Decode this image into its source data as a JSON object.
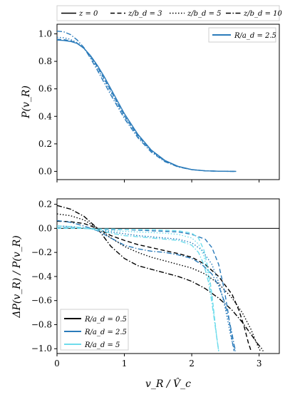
{
  "figure": {
    "top_legend": [
      {
        "label": "z = 0",
        "dash": "solid"
      },
      {
        "label": "z/b_d = 3",
        "dash": "dashed"
      },
      {
        "label": "z/b_d = 5",
        "dash": "dotted"
      },
      {
        "label": "z/b_d = 10",
        "dash": "dashdot"
      }
    ]
  },
  "chart_data": [
    {
      "type": "line",
      "panel": "top",
      "ylabel": "P(v_R)",
      "xlim": [
        0,
        3.3
      ],
      "ylim": [
        -0.06,
        1.07
      ],
      "x_ticks": [
        0,
        1,
        2,
        3
      ],
      "y_ticks": [
        "0.0",
        "0.2",
        "0.4",
        "0.6",
        "0.8",
        "1.0"
      ],
      "y_tick_values": [
        0.0,
        0.2,
        0.4,
        0.6,
        0.8,
        1.0
      ],
      "legend": {
        "position": "top-right",
        "entries": [
          {
            "label": "R/a_d = 2.5",
            "color": "#2b7bba"
          }
        ]
      },
      "series": [
        {
          "name": "z=0",
          "color": "#2b7bba",
          "dash": "solid",
          "x": [
            0,
            0.1,
            0.2,
            0.3,
            0.4,
            0.5,
            0.6,
            0.7,
            0.8,
            0.9,
            1.0,
            1.2,
            1.4,
            1.6,
            1.8,
            2.0,
            2.2,
            2.4,
            2.6,
            2.66
          ],
          "y": [
            0.955,
            0.952,
            0.945,
            0.93,
            0.895,
            0.84,
            0.77,
            0.69,
            0.6,
            0.51,
            0.42,
            0.27,
            0.155,
            0.08,
            0.036,
            0.013,
            0.004,
            0.001,
            0.0,
            0.0
          ]
        },
        {
          "name": "z/b_d=3",
          "color": "#2b7bba",
          "dash": "dashed",
          "x": [
            0,
            0.1,
            0.2,
            0.3,
            0.4,
            0.5,
            0.6,
            0.7,
            0.8,
            0.9,
            1.0,
            1.2,
            1.4,
            1.6,
            1.8,
            2.0,
            2.2,
            2.4,
            2.6,
            2.65
          ],
          "y": [
            0.96,
            0.958,
            0.95,
            0.932,
            0.895,
            0.835,
            0.76,
            0.675,
            0.585,
            0.495,
            0.405,
            0.26,
            0.15,
            0.077,
            0.035,
            0.013,
            0.004,
            0.001,
            0.0,
            0.0
          ]
        },
        {
          "name": "z/b_d=5",
          "color": "#2b7bba",
          "dash": "dotted",
          "x": [
            0,
            0.1,
            0.2,
            0.3,
            0.4,
            0.5,
            0.6,
            0.7,
            0.8,
            0.9,
            1.0,
            1.2,
            1.4,
            1.6,
            1.8,
            2.0,
            2.2,
            2.4,
            2.6,
            2.64
          ],
          "y": [
            0.975,
            0.972,
            0.96,
            0.935,
            0.895,
            0.83,
            0.75,
            0.665,
            0.575,
            0.485,
            0.4,
            0.255,
            0.147,
            0.075,
            0.034,
            0.013,
            0.004,
            0.001,
            0.0,
            0.0
          ]
        },
        {
          "name": "z/b_d=10",
          "color": "#2b7bba",
          "dash": "dashdot",
          "x": [
            0,
            0.1,
            0.2,
            0.3,
            0.4,
            0.5,
            0.6,
            0.7,
            0.8,
            0.9,
            1.0,
            1.2,
            1.4,
            1.6,
            1.8,
            2.0,
            2.2,
            2.4,
            2.6,
            2.62
          ],
          "y": [
            1.02,
            1.015,
            0.995,
            0.955,
            0.9,
            0.82,
            0.735,
            0.645,
            0.555,
            0.47,
            0.385,
            0.245,
            0.14,
            0.071,
            0.032,
            0.012,
            0.004,
            0.001,
            0.0,
            0.0
          ]
        }
      ]
    },
    {
      "type": "line",
      "panel": "bottom",
      "xlabel": "v_R / V̂_c",
      "ylabel": "ΔP(v_R) / P(v_R)",
      "xlim": [
        0,
        3.3
      ],
      "ylim": [
        -1.04,
        0.245
      ],
      "x_ticks": [
        "0",
        "1",
        "2",
        "3"
      ],
      "x_tick_values": [
        0,
        1,
        2,
        3
      ],
      "y_ticks": [
        "−1.0",
        "−0.8",
        "−0.6",
        "−0.4",
        "−0.2",
        "0.0",
        "0.2"
      ],
      "y_tick_values": [
        -1.0,
        -0.8,
        -0.6,
        -0.4,
        -0.2,
        0.0,
        0.2
      ],
      "reference_line_y": 0.0,
      "legend": {
        "position": "bottom-left",
        "entries": [
          {
            "label": "R/a_d = 0.5",
            "color": "#000000"
          },
          {
            "label": "R/a_d = 2.5",
            "color": "#2b7bba"
          },
          {
            "label": "R/a_d = 5",
            "color": "#6fdcec"
          }
        ]
      },
      "series": [
        {
          "name": "R/a_d=0.5, z/b_d=3",
          "color": "#000000",
          "dash": "dashed",
          "x": [
            0,
            0.2,
            0.4,
            0.6,
            0.8,
            1.0,
            1.2,
            1.4,
            1.6,
            1.8,
            2.0,
            2.2,
            2.4,
            2.6,
            2.7,
            2.78,
            2.84,
            2.87,
            2.88
          ],
          "y": [
            0.06,
            0.055,
            0.04,
            0.0,
            -0.06,
            -0.1,
            -0.135,
            -0.16,
            -0.185,
            -0.21,
            -0.24,
            -0.3,
            -0.4,
            -0.55,
            -0.68,
            -0.82,
            -0.95,
            -1.0,
            -1.02
          ]
        },
        {
          "name": "R/a_d=0.5, z/b_d=5",
          "color": "#000000",
          "dash": "dotted",
          "x": [
            0,
            0.2,
            0.4,
            0.6,
            0.8,
            1.0,
            1.2,
            1.4,
            1.6,
            1.8,
            2.0,
            2.2,
            2.4,
            2.6,
            2.75,
            2.88,
            2.96,
            3.0,
            3.02
          ],
          "y": [
            0.12,
            0.105,
            0.07,
            0.0,
            -0.08,
            -0.15,
            -0.2,
            -0.24,
            -0.27,
            -0.3,
            -0.33,
            -0.38,
            -0.46,
            -0.58,
            -0.7,
            -0.84,
            -0.95,
            -1.0,
            -1.02
          ]
        },
        {
          "name": "R/a_d=0.5, z/b_d=10",
          "color": "#000000",
          "dash": "dashdot",
          "x": [
            0,
            0.2,
            0.4,
            0.6,
            0.8,
            1.0,
            1.2,
            1.4,
            1.6,
            1.8,
            2.0,
            2.2,
            2.4,
            2.6,
            2.75,
            2.88,
            2.98,
            3.04,
            3.06
          ],
          "y": [
            0.19,
            0.16,
            0.1,
            0.0,
            -0.15,
            -0.25,
            -0.31,
            -0.34,
            -0.37,
            -0.4,
            -0.44,
            -0.5,
            -0.58,
            -0.68,
            -0.78,
            -0.88,
            -0.96,
            -1.0,
            -1.02
          ]
        },
        {
          "name": "R/a_d=2.5, z/b_d=3",
          "color": "#2b7bba",
          "dash": "dashed",
          "x": [
            0,
            0.2,
            0.4,
            0.6,
            0.8,
            1.0,
            1.2,
            1.4,
            1.6,
            1.8,
            2.0,
            2.2,
            2.3,
            2.4,
            2.48,
            2.54,
            2.58,
            2.61,
            2.63
          ],
          "y": [
            0.005,
            0.005,
            0.0,
            -0.005,
            -0.01,
            -0.01,
            -0.015,
            -0.02,
            -0.025,
            -0.03,
            -0.05,
            -0.09,
            -0.16,
            -0.3,
            -0.5,
            -0.7,
            -0.86,
            -0.97,
            -1.02
          ]
        },
        {
          "name": "R/a_d=2.5, z/b_d=5",
          "color": "#2b7bba",
          "dash": "dotted",
          "x": [
            0,
            0.2,
            0.4,
            0.6,
            0.8,
            1.0,
            1.2,
            1.4,
            1.6,
            1.8,
            2.0,
            2.15,
            2.3,
            2.4,
            2.48,
            2.54,
            2.58,
            2.62,
            2.64
          ],
          "y": [
            0.02,
            0.015,
            0.005,
            -0.01,
            -0.03,
            -0.045,
            -0.06,
            -0.07,
            -0.08,
            -0.09,
            -0.12,
            -0.18,
            -0.3,
            -0.45,
            -0.62,
            -0.78,
            -0.9,
            -0.98,
            -1.02
          ]
        },
        {
          "name": "R/a_d=2.5, z/b_d=10",
          "color": "#2b7bba",
          "dash": "dashdot",
          "x": [
            0,
            0.2,
            0.4,
            0.6,
            0.8,
            1.0,
            1.2,
            1.4,
            1.6,
            1.8,
            2.0,
            2.15,
            2.3,
            2.4,
            2.48,
            2.55,
            2.6,
            2.63,
            2.65
          ],
          "y": [
            0.065,
            0.05,
            0.02,
            -0.02,
            -0.08,
            -0.14,
            -0.17,
            -0.19,
            -0.2,
            -0.22,
            -0.25,
            -0.3,
            -0.38,
            -0.48,
            -0.6,
            -0.75,
            -0.88,
            -0.97,
            -1.02
          ]
        },
        {
          "name": "R/a_d=5, z/b_d=3",
          "color": "#6fdcec",
          "dash": "dashed",
          "x": [
            0,
            0.2,
            0.4,
            0.6,
            0.8,
            1.0,
            1.2,
            1.4,
            1.6,
            1.8,
            2.0,
            2.1,
            2.18,
            2.25,
            2.3,
            2.34,
            2.37,
            2.39,
            2.4
          ],
          "y": [
            0.0,
            0.0,
            0.0,
            -0.005,
            -0.005,
            -0.01,
            -0.01,
            -0.01,
            -0.015,
            -0.02,
            -0.04,
            -0.08,
            -0.18,
            -0.35,
            -0.55,
            -0.75,
            -0.9,
            -0.98,
            -1.02
          ]
        },
        {
          "name": "R/a_d=5, z/b_d=5",
          "color": "#6fdcec",
          "dash": "dotted",
          "x": [
            0,
            0.2,
            0.4,
            0.6,
            0.8,
            1.0,
            1.2,
            1.4,
            1.6,
            1.8,
            2.0,
            2.1,
            2.18,
            2.25,
            2.3,
            2.34,
            2.37,
            2.39,
            2.4
          ],
          "y": [
            0.005,
            0.005,
            0.0,
            -0.01,
            -0.02,
            -0.025,
            -0.03,
            -0.035,
            -0.04,
            -0.05,
            -0.08,
            -0.13,
            -0.23,
            -0.4,
            -0.58,
            -0.76,
            -0.9,
            -0.98,
            -1.02
          ]
        },
        {
          "name": "R/a_d=5, z/b_d=10",
          "color": "#6fdcec",
          "dash": "dashdot",
          "x": [
            0,
            0.2,
            0.4,
            0.6,
            0.8,
            1.0,
            1.2,
            1.4,
            1.6,
            1.8,
            2.0,
            2.1,
            2.18,
            2.25,
            2.3,
            2.34,
            2.37,
            2.39,
            2.4
          ],
          "y": [
            0.02,
            0.015,
            0.005,
            -0.015,
            -0.04,
            -0.06,
            -0.07,
            -0.08,
            -0.09,
            -0.1,
            -0.14,
            -0.2,
            -0.3,
            -0.45,
            -0.62,
            -0.78,
            -0.9,
            -0.98,
            -1.02
          ]
        }
      ]
    }
  ]
}
